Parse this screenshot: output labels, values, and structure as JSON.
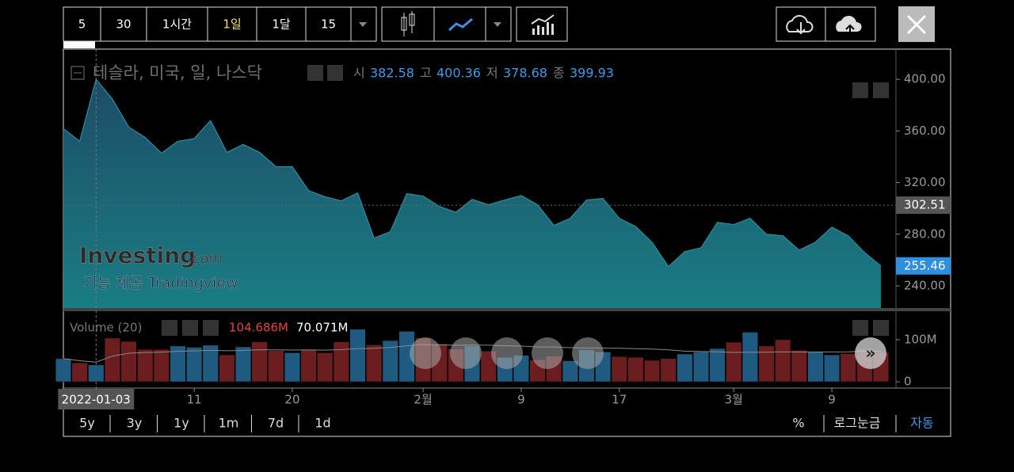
{
  "toolbar": {
    "intervals": [
      "5",
      "30",
      "1시간",
      "1일",
      "1달",
      "15"
    ],
    "active_interval": 3
  },
  "chart_data": {
    "type": "area",
    "title": "테슬라, 미국, 일, 나스닥",
    "ohlc": [
      {
        "label": "시",
        "value": 382.58
      },
      {
        "label": "고",
        "value": 400.36
      },
      {
        "label": "저",
        "value": 378.68
      },
      {
        "label": "종",
        "value": 399.93
      }
    ],
    "categories": [
      null,
      null,
      "2022-01-03",
      null,
      null,
      null,
      null,
      null,
      "11",
      null,
      null,
      null,
      null,
      null,
      "20",
      null,
      null,
      null,
      null,
      null,
      null,
      null,
      "2월",
      null,
      null,
      null,
      null,
      null,
      "9",
      null,
      null,
      null,
      null,
      null,
      "17",
      null,
      null,
      null,
      null,
      null,
      null,
      "3월",
      null,
      null,
      null,
      null,
      null,
      "9",
      null,
      null,
      null
    ],
    "values": [
      361.8,
      352,
      400,
      384.6,
      363,
      355,
      342.8,
      352,
      354,
      368,
      343.4,
      349.5,
      343.4,
      332.3,
      332.3,
      313.8,
      309,
      305.8,
      312,
      277,
      282,
      311.4,
      309.5,
      301.5,
      297,
      307,
      302.8,
      306.5,
      310,
      302.8,
      286.8,
      292.3,
      306.5,
      307.7,
      292.3,
      286,
      273.8,
      255,
      266.5,
      269.5,
      289.2,
      287.4,
      292.3,
      280,
      278.8,
      267.7,
      273.8,
      285.5,
      278.8,
      265.8,
      255.46
    ],
    "color": "#1a7d84",
    "ylim": [
      222.8,
      423.4
    ],
    "yticks": [
      {
        "value": 400,
        "label": "400.00"
      },
      {
        "value": 360,
        "label": "360.00"
      },
      {
        "value": 320,
        "label": "320.00"
      },
      {
        "value": 280,
        "label": "280.00"
      },
      {
        "value": 240,
        "label": "240.00"
      }
    ],
    "price_tags": [
      302.51,
      255.46
    ],
    "volume": {
      "name": "Volume (20)",
      "values": [
        55,
        45,
        40,
        104,
        96,
        77,
        77,
        85,
        82,
        87,
        64,
        83,
        95,
        74,
        69,
        77,
        69,
        95,
        125,
        88,
        98,
        120,
        104,
        90,
        78,
        85,
        73,
        58,
        63,
        52,
        61,
        50,
        76,
        71,
        60,
        58,
        51,
        55,
        66,
        71,
        79,
        94,
        118,
        85,
        100,
        75,
        71,
        64,
        67,
        79,
        70
      ],
      "ylim": [
        -15,
        164
      ],
      "yticks": [
        {
          "value": 100,
          "label": "100M"
        },
        0
      ],
      "readouts": [
        {
          "value": 104.686,
          "label": "104.686M"
        },
        {
          "value": 70.071,
          "label": "70.071M"
        }
      ],
      "up_color": "#1f5b80",
      "down_color": "#6b1d1f"
    }
  },
  "watermark": {
    "brand": "Investing",
    "suffix": ".com",
    "credit": "기능 제공 Tradingview"
  },
  "ranges": [
    "5y",
    "3y",
    "1y",
    "1m",
    "7d",
    "1d"
  ],
  "options": [
    "%",
    "로그눈금",
    "자동"
  ]
}
